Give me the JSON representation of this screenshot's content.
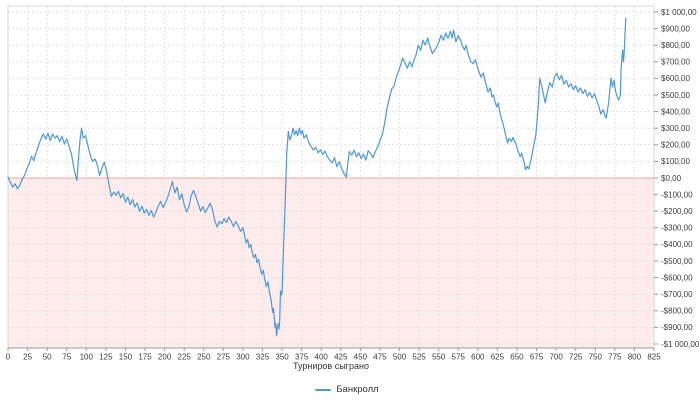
{
  "chart_data": {
    "type": "line",
    "title": "",
    "xlabel": "Турниров сыграно",
    "ylabel": "",
    "xlim": [
      0,
      825
    ],
    "ylim": [
      -1000,
      1000
    ],
    "x_tick_interval": 25,
    "y_tick_interval": 100,
    "grid": true,
    "legend_position": "bottom",
    "x_ticks": [
      0,
      25,
      50,
      75,
      100,
      125,
      150,
      175,
      200,
      225,
      250,
      275,
      300,
      325,
      350,
      375,
      400,
      425,
      450,
      475,
      500,
      525,
      550,
      575,
      600,
      625,
      650,
      675,
      700,
      725,
      750,
      775,
      800,
      825
    ],
    "y_tick_labels": [
      "$1 000,00",
      "$900,00",
      "$800,00",
      "$700,00",
      "$600,00",
      "$500,00",
      "$400,00",
      "$300,00",
      "$200,00",
      "$100,00",
      "$0,00",
      "-$100,00",
      "-$200,00",
      "-$300,00",
      "-$400,00",
      "-$500,00",
      "-$600,00",
      "-$700,00",
      "-$800,00",
      "-$900,00",
      "-$1 000,00"
    ],
    "colors": {
      "line": "#4f98d4",
      "negative_fill": "#fdeceb",
      "zero_line": "#f0a8a0",
      "grid": "#e3e3e3",
      "axis": "#999999",
      "border": "#d9d9d9",
      "text": "#3d3d3d"
    },
    "series": [
      {
        "name": "Банкролл",
        "color": "#4f98d4",
        "points": [
          [
            0,
            5
          ],
          [
            3,
            -25
          ],
          [
            6,
            -55
          ],
          [
            9,
            -35
          ],
          [
            12,
            -65
          ],
          [
            15,
            -45
          ],
          [
            18,
            -10
          ],
          [
            21,
            15
          ],
          [
            24,
            55
          ],
          [
            27,
            85
          ],
          [
            30,
            130
          ],
          [
            33,
            105
          ],
          [
            36,
            155
          ],
          [
            39,
            195
          ],
          [
            42,
            235
          ],
          [
            45,
            265
          ],
          [
            48,
            235
          ],
          [
            51,
            270
          ],
          [
            54,
            225
          ],
          [
            57,
            265
          ],
          [
            60,
            240
          ],
          [
            63,
            255
          ],
          [
            66,
            220
          ],
          [
            69,
            250
          ],
          [
            72,
            205
          ],
          [
            75,
            235
          ],
          [
            78,
            190
          ],
          [
            81,
            145
          ],
          [
            84,
            65
          ],
          [
            86,
            20
          ],
          [
            88,
            -15
          ],
          [
            90,
            120
          ],
          [
            92,
            230
          ],
          [
            94,
            300
          ],
          [
            96,
            240
          ],
          [
            99,
            255
          ],
          [
            102,
            195
          ],
          [
            105,
            140
          ],
          [
            108,
            100
          ],
          [
            111,
            115
          ],
          [
            114,
            80
          ],
          [
            117,
            15
          ],
          [
            120,
            60
          ],
          [
            123,
            95
          ],
          [
            126,
            40
          ],
          [
            129,
            -40
          ],
          [
            132,
            -110
          ],
          [
            135,
            -85
          ],
          [
            138,
            -105
          ],
          [
            141,
            -80
          ],
          [
            144,
            -120
          ],
          [
            147,
            -95
          ],
          [
            150,
            -145
          ],
          [
            153,
            -115
          ],
          [
            156,
            -160
          ],
          [
            159,
            -130
          ],
          [
            162,
            -175
          ],
          [
            165,
            -150
          ],
          [
            168,
            -200
          ],
          [
            171,
            -170
          ],
          [
            174,
            -212
          ],
          [
            177,
            -188
          ],
          [
            180,
            -225
          ],
          [
            183,
            -196
          ],
          [
            186,
            -235
          ],
          [
            189,
            -205
          ],
          [
            192,
            -168
          ],
          [
            195,
            -140
          ],
          [
            198,
            -178
          ],
          [
            201,
            -150
          ],
          [
            204,
            -115
          ],
          [
            207,
            -70
          ],
          [
            210,
            -20
          ],
          [
            213,
            -90
          ],
          [
            216,
            -55
          ],
          [
            219,
            -130
          ],
          [
            222,
            -95
          ],
          [
            225,
            -160
          ],
          [
            228,
            -205
          ],
          [
            231,
            -175
          ],
          [
            234,
            -105
          ],
          [
            237,
            -75
          ],
          [
            240,
            -115
          ],
          [
            243,
            -155
          ],
          [
            246,
            -200
          ],
          [
            249,
            -172
          ],
          [
            252,
            -208
          ],
          [
            255,
            -182
          ],
          [
            258,
            -152
          ],
          [
            261,
            -188
          ],
          [
            264,
            -255
          ],
          [
            267,
            -295
          ],
          [
            270,
            -262
          ],
          [
            273,
            -275
          ],
          [
            276,
            -245
          ],
          [
            279,
            -268
          ],
          [
            282,
            -235
          ],
          [
            285,
            -262
          ],
          [
            288,
            -292
          ],
          [
            291,
            -262
          ],
          [
            294,
            -288
          ],
          [
            297,
            -322
          ],
          [
            300,
            -300
          ],
          [
            302,
            -340
          ],
          [
            304,
            -390
          ],
          [
            306,
            -370
          ],
          [
            308,
            -420
          ],
          [
            310,
            -400
          ],
          [
            312,
            -450
          ],
          [
            314,
            -480
          ],
          [
            316,
            -460
          ],
          [
            318,
            -510
          ],
          [
            320,
            -490
          ],
          [
            322,
            -540
          ],
          [
            324,
            -580
          ],
          [
            326,
            -555
          ],
          [
            328,
            -615
          ],
          [
            330,
            -655
          ],
          [
            332,
            -625
          ],
          [
            334,
            -690
          ],
          [
            336,
            -735
          ],
          [
            337,
            -775
          ],
          [
            338,
            -810
          ],
          [
            339,
            -785
          ],
          [
            340,
            -840
          ],
          [
            341,
            -900
          ],
          [
            342,
            -875
          ],
          [
            343,
            -950
          ],
          [
            344,
            -905
          ],
          [
            345,
            -880
          ],
          [
            346,
            -910
          ],
          [
            347,
            -855
          ],
          [
            348,
            -680
          ],
          [
            349,
            -705
          ],
          [
            350,
            -690
          ],
          [
            352,
            -400
          ],
          [
            354,
            -150
          ],
          [
            356,
            150
          ],
          [
            358,
            280
          ],
          [
            360,
            230
          ],
          [
            362,
            255
          ],
          [
            364,
            300
          ],
          [
            366,
            260
          ],
          [
            368,
            285
          ],
          [
            370,
            255
          ],
          [
            372,
            300
          ],
          [
            374,
            265
          ],
          [
            376,
            285
          ],
          [
            378,
            240
          ],
          [
            381,
            260
          ],
          [
            384,
            215
          ],
          [
            387,
            190
          ],
          [
            390,
            168
          ],
          [
            393,
            185
          ],
          [
            396,
            152
          ],
          [
            399,
            170
          ],
          [
            402,
            142
          ],
          [
            405,
            162
          ],
          [
            408,
            128
          ],
          [
            411,
            108
          ],
          [
            414,
            92
          ],
          [
            417,
            122
          ],
          [
            420,
            68
          ],
          [
            423,
            98
          ],
          [
            426,
            58
          ],
          [
            429,
            28
          ],
          [
            432,
            5
          ],
          [
            434,
            90
          ],
          [
            436,
            160
          ],
          [
            439,
            138
          ],
          [
            442,
            168
          ],
          [
            445,
            128
          ],
          [
            448,
            152
          ],
          [
            451,
            118
          ],
          [
            454,
            142
          ],
          [
            457,
            108
          ],
          [
            460,
            165
          ],
          [
            463,
            148
          ],
          [
            466,
            122
          ],
          [
            469,
            158
          ],
          [
            472,
            185
          ],
          [
            475,
            225
          ],
          [
            478,
            262
          ],
          [
            481,
            330
          ],
          [
            484,
            420
          ],
          [
            487,
            480
          ],
          [
            490,
            535
          ],
          [
            493,
            555
          ],
          [
            496,
            608
          ],
          [
            499,
            648
          ],
          [
            502,
            690
          ],
          [
            504,
            722
          ],
          [
            507,
            692
          ],
          [
            510,
            662
          ],
          [
            513,
            700
          ],
          [
            516,
            670
          ],
          [
            519,
            718
          ],
          [
            521,
            740
          ],
          [
            524,
            800
          ],
          [
            527,
            770
          ],
          [
            530,
            830
          ],
          [
            533,
            800
          ],
          [
            536,
            843
          ],
          [
            539,
            790
          ],
          [
            542,
            750
          ],
          [
            545,
            770
          ],
          [
            547,
            785
          ],
          [
            550,
            815
          ],
          [
            553,
            860
          ],
          [
            556,
            830
          ],
          [
            559,
            873
          ],
          [
            562,
            843
          ],
          [
            565,
            885
          ],
          [
            567,
            843
          ],
          [
            569,
            890
          ],
          [
            572,
            820
          ],
          [
            575,
            858
          ],
          [
            578,
            830
          ],
          [
            580,
            800
          ],
          [
            583,
            770
          ],
          [
            585,
            800
          ],
          [
            588,
            740
          ],
          [
            591,
            700
          ],
          [
            594,
            690
          ],
          [
            597,
            712
          ],
          [
            600,
            660
          ],
          [
            604,
            608
          ],
          [
            607,
            632
          ],
          [
            610,
            572
          ],
          [
            613,
            518
          ],
          [
            616,
            542
          ],
          [
            618,
            488
          ],
          [
            620,
            500
          ],
          [
            622,
            458
          ],
          [
            624,
            428
          ],
          [
            626,
            452
          ],
          [
            628,
            398
          ],
          [
            630,
            360
          ],
          [
            632,
            330
          ],
          [
            634,
            290
          ],
          [
            636,
            250
          ],
          [
            638,
            210
          ],
          [
            640,
            240
          ],
          [
            643,
            220
          ],
          [
            645,
            245
          ],
          [
            648,
            212
          ],
          [
            651,
            170
          ],
          [
            654,
            128
          ],
          [
            656,
            150
          ],
          [
            659,
            95
          ],
          [
            661,
            50
          ],
          [
            663,
            70
          ],
          [
            665,
            55
          ],
          [
            668,
            110
          ],
          [
            671,
            185
          ],
          [
            674,
            255
          ],
          [
            677,
            420
          ],
          [
            679,
            600
          ],
          [
            682,
            545
          ],
          [
            686,
            452
          ],
          [
            689,
            520
          ],
          [
            692,
            575
          ],
          [
            695,
            548
          ],
          [
            698,
            608
          ],
          [
            701,
            632
          ],
          [
            704,
            592
          ],
          [
            707,
            618
          ],
          [
            710,
            565
          ],
          [
            713,
            588
          ],
          [
            716,
            548
          ],
          [
            719,
            568
          ],
          [
            722,
            532
          ],
          [
            725,
            556
          ],
          [
            728,
            518
          ],
          [
            731,
            542
          ],
          [
            734,
            508
          ],
          [
            737,
            532
          ],
          [
            740,
            492
          ],
          [
            743,
            515
          ],
          [
            746,
            482
          ],
          [
            749,
            508
          ],
          [
            752,
            465
          ],
          [
            755,
            425
          ],
          [
            757,
            385
          ],
          [
            760,
            412
          ],
          [
            762,
            380
          ],
          [
            764,
            362
          ],
          [
            767,
            452
          ],
          [
            769,
            548
          ],
          [
            770,
            602
          ],
          [
            772,
            548
          ],
          [
            774,
            590
          ],
          [
            776,
            520
          ],
          [
            778,
            488
          ],
          [
            780,
            470
          ],
          [
            782,
            500
          ],
          [
            783,
            662
          ],
          [
            785,
            771
          ],
          [
            786,
            700
          ],
          [
            787,
            760
          ],
          [
            788,
            870
          ],
          [
            789,
            962
          ]
        ]
      }
    ]
  }
}
